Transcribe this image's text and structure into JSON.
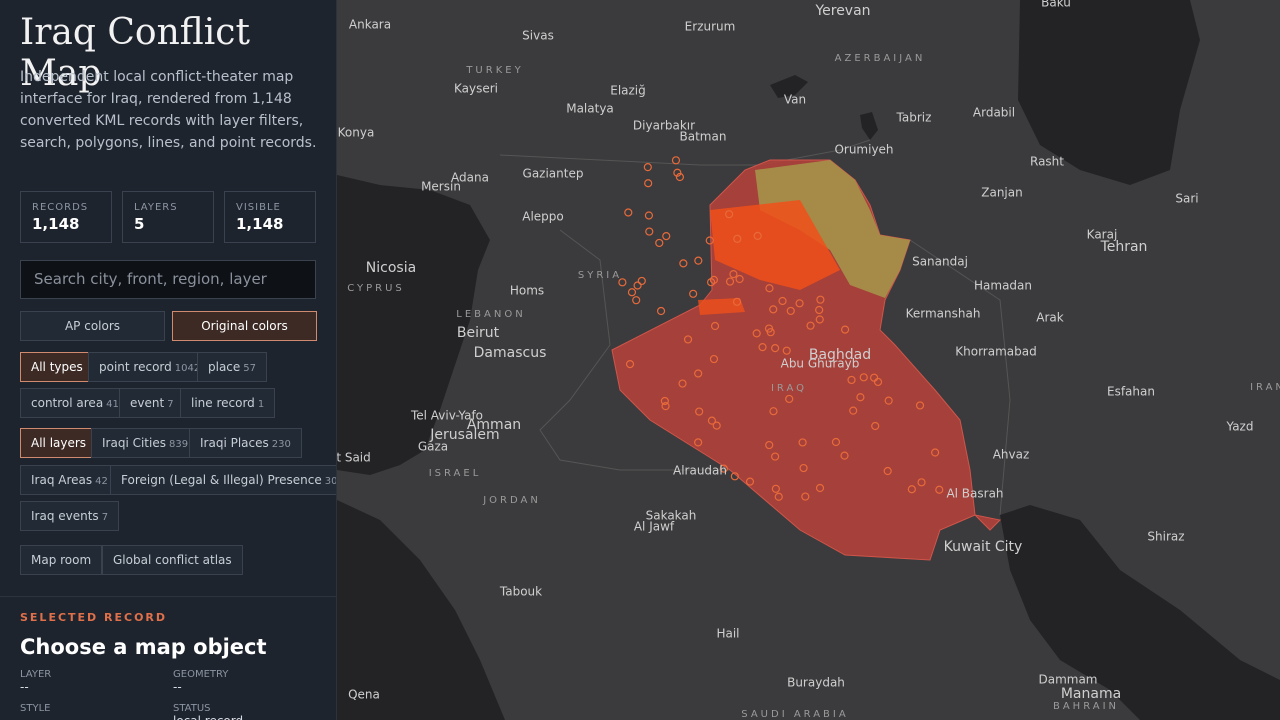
{
  "sidebar": {
    "title": "Iraq Conflict Map",
    "description": "Independent local conflict-theater map interface for Iraq, rendered from 1,148 converted KML records with layer filters, search, polygons, lines, and point records.",
    "stats": [
      {
        "label": "RECORDS",
        "value": "1,148"
      },
      {
        "label": "LAYERS",
        "value": "5"
      },
      {
        "label": "VISIBLE",
        "value": "1,148"
      }
    ],
    "search_placeholder": "Search city, front, region, layer",
    "color_modes": [
      "AP colors",
      "Original colors"
    ],
    "type_filters": [
      {
        "label": "All types"
      },
      {
        "label": "point record",
        "count": 1042
      },
      {
        "label": "place",
        "count": 57
      },
      {
        "label": "control area",
        "count": 41
      },
      {
        "label": "event",
        "count": 7
      },
      {
        "label": "line record",
        "count": 1
      }
    ],
    "layer_filters": [
      {
        "label": "All layers"
      },
      {
        "label": "Iraqi Cities",
        "count": 839
      },
      {
        "label": "Iraqi Places",
        "count": 230
      },
      {
        "label": "Iraq Areas",
        "count": 42
      },
      {
        "label": "Foreign (Legal & Illegal) Presence",
        "count": 30
      },
      {
        "label": "Iraq events",
        "count": 7
      }
    ],
    "links": [
      "Map room",
      "Global conflict atlas"
    ],
    "selected": {
      "section": "SELECTED RECORD",
      "heading": "Choose a map object",
      "fields": [
        {
          "label": "LAYER",
          "value": "--"
        },
        {
          "label": "GEOMETRY",
          "value": "--"
        },
        {
          "label": "STYLE"
        },
        {
          "label": "STATUS",
          "value": "local record"
        }
      ]
    }
  },
  "map": {
    "labels": [
      "Ankara",
      "Sivas",
      "Erzurum",
      "Yerevan",
      "Baku",
      "TURKEY",
      "AZERBAIJAN",
      "Kayseri",
      "Malatya",
      "Elaziğ",
      "Van",
      "Tabriz",
      "Ardabil",
      "Konya",
      "Diyarbakır",
      "Batman",
      "Orumiyeh",
      "Rasht",
      "Adana",
      "Gaziantep",
      "Mersin",
      "Zanjan",
      "Sari",
      "Aleppo",
      "Karaj",
      "Tehran",
      "SYRIA",
      "Sanandaj",
      "Nicosia",
      "CYPRUS",
      "Homs",
      "Hamadan",
      "LEBANON",
      "Kermanshah",
      "Arak",
      "Beirut",
      "Damascus",
      "Baghdad",
      "Abu Ghurayb",
      "Khorramabad",
      "IRAQ",
      "IRAN",
      "Esfahan",
      "Tel Aviv-Yafo",
      "Amman",
      "Jerusalem",
      "Yazd",
      "Gaza",
      "Port Said",
      "Ahvaz",
      "ISRAEL",
      "Alraudah",
      "Al Basrah",
      "JORDAN",
      "Sakakah",
      "Al Jawf",
      "Kuwait City",
      "Shiraz",
      "Tabouk",
      "Hail",
      "Dammam",
      "Buraydah",
      "Manama",
      "Qena",
      "BAHRAIN",
      "SAUDI ARABIA"
    ]
  }
}
